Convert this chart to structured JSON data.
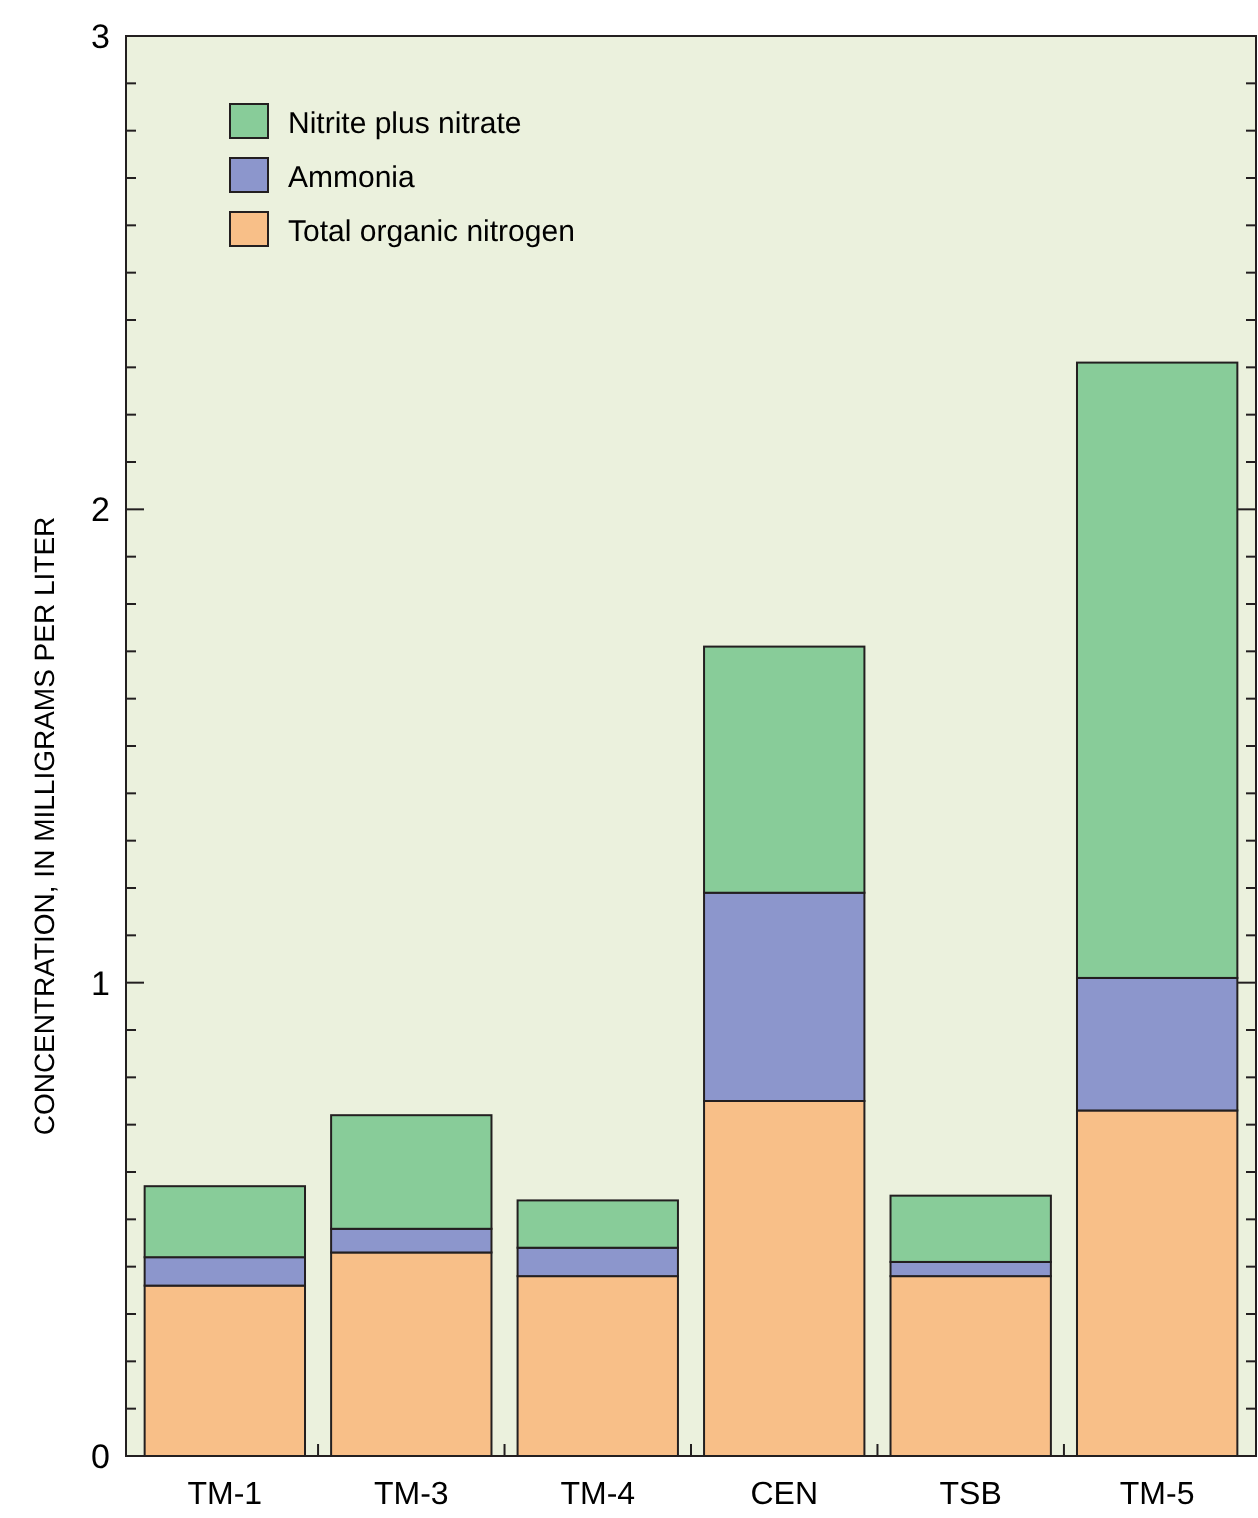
{
  "chart_data": {
    "type": "bar",
    "ylabel": "CONCENTRATION, IN MILLIGRAMS PER LITER",
    "categories": [
      "TM-1",
      "TM-3",
      "TM-4",
      "CEN",
      "TSB",
      "TM-5"
    ],
    "stacked": true,
    "legend": "top left",
    "series": [
      {
        "name": "Total organic nitrogen",
        "color": "#f8bf88",
        "values": [
          0.36,
          0.43,
          0.38,
          0.75,
          0.38,
          0.73
        ]
      },
      {
        "name": "Ammonia",
        "color": "#8c96cc",
        "values": [
          0.06,
          0.05,
          0.06,
          0.44,
          0.03,
          0.28
        ]
      },
      {
        "name": "Nitrite plus nitrate",
        "color": "#88cc99",
        "values": [
          0.15,
          0.24,
          0.1,
          0.52,
          0.14,
          1.3
        ]
      }
    ],
    "ylim": [
      0,
      3
    ],
    "yticks": [
      0,
      {
        "value": 0.1,
        "label": null
      },
      {
        "value": 0.2,
        "label": null
      },
      {
        "value": 0.3,
        "label": null
      },
      {
        "value": 0.4,
        "label": null
      },
      {
        "value": 0.5,
        "label": null
      },
      {
        "value": 0.6,
        "label": null
      },
      {
        "value": 0.7,
        "label": null
      },
      {
        "value": 0.8,
        "label": null
      },
      {
        "value": 0.9,
        "label": null
      },
      1,
      {
        "value": 1.1,
        "label": null
      },
      {
        "value": 1.2,
        "label": null
      },
      {
        "value": 1.3,
        "label": null
      },
      {
        "value": 1.4,
        "label": null
      },
      {
        "value": 1.5,
        "label": null
      },
      {
        "value": 1.6,
        "label": null
      },
      {
        "value": 1.7,
        "label": null
      },
      {
        "value": 1.8,
        "label": null
      },
      {
        "value": 1.9,
        "label": null
      },
      2,
      {
        "value": 2.1,
        "label": null
      },
      {
        "value": 2.2,
        "label": null
      },
      {
        "value": 2.3,
        "label": null
      },
      {
        "value": 2.4,
        "label": null
      },
      {
        "value": 2.5,
        "label": null
      },
      {
        "value": 2.6,
        "label": null
      },
      {
        "value": 2.7,
        "label": null
      },
      {
        "value": 2.8,
        "label": null
      },
      {
        "value": 2.9,
        "label": null
      },
      3
    ]
  }
}
